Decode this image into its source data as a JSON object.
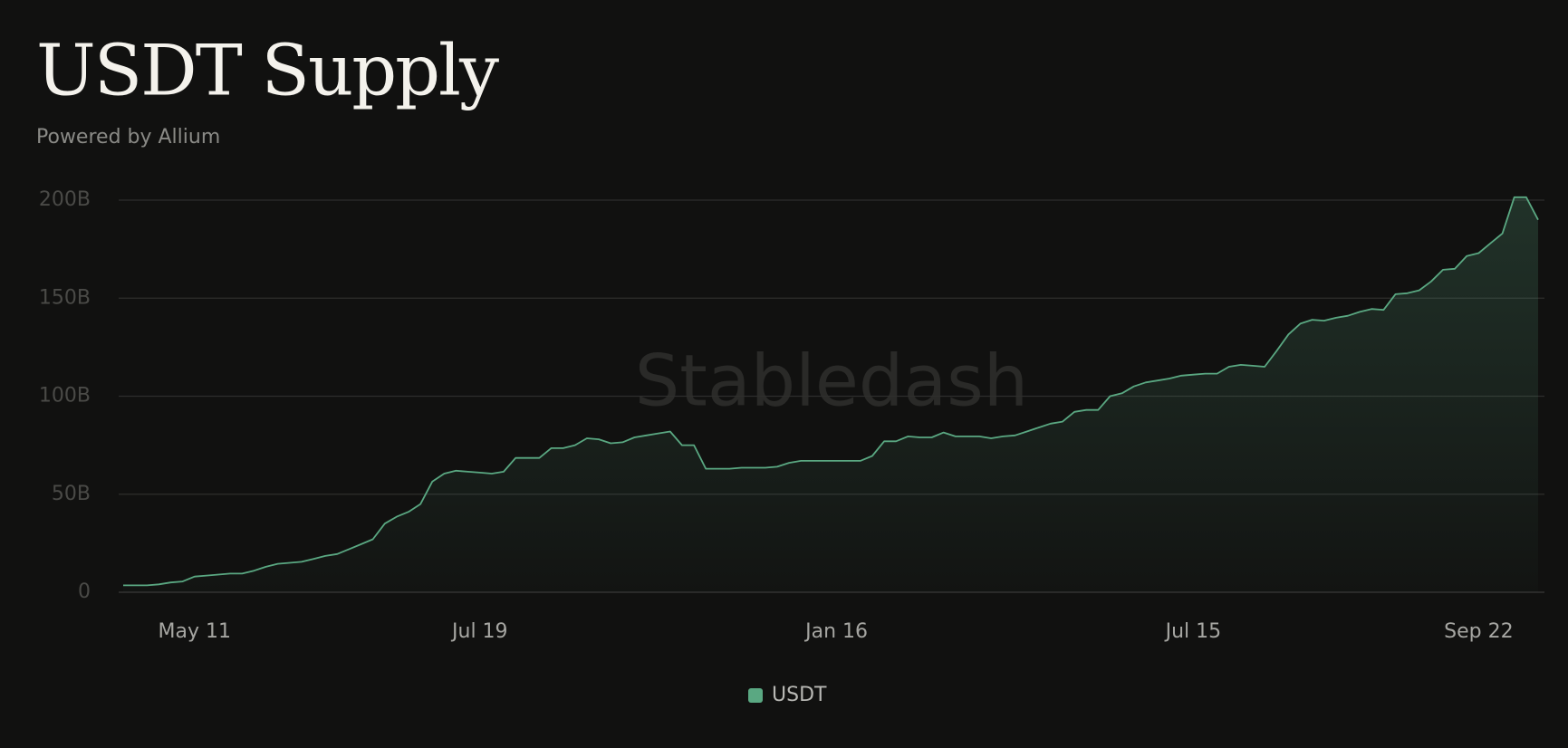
{
  "chart_data": {
    "type": "area",
    "title": "USDT Supply",
    "subtitle": "Powered by Allium",
    "watermark": "Stabledash",
    "categories": [
      null,
      null,
      null,
      null,
      null,
      null,
      "May 11",
      null,
      null,
      null,
      null,
      null,
      null,
      null,
      null,
      null,
      null,
      null,
      null,
      null,
      null,
      null,
      null,
      null,
      null,
      null,
      null,
      null,
      null,
      null,
      "Jul 19",
      null,
      null,
      null,
      null,
      null,
      null,
      null,
      null,
      null,
      null,
      null,
      null,
      null,
      null,
      null,
      null,
      null,
      null,
      null,
      null,
      null,
      null,
      null,
      null,
      null,
      null,
      null,
      null,
      null,
      "Jan 16",
      null,
      null,
      null,
      null,
      null,
      null,
      null,
      null,
      null,
      null,
      null,
      null,
      null,
      null,
      null,
      null,
      null,
      null,
      null,
      null,
      null,
      null,
      null,
      null,
      null,
      null,
      null,
      null,
      null,
      "Jul 15",
      null,
      null,
      null,
      null,
      null,
      null,
      null,
      null,
      null,
      null,
      null,
      null,
      null,
      null,
      null,
      null,
      null,
      null,
      null,
      null,
      null,
      null,
      null,
      "Sep 22",
      null,
      null,
      null,
      null,
      null
    ],
    "series": [
      {
        "name": "USDT",
        "color": "#5aa882",
        "values": [
          3.5,
          3.5,
          3.5,
          4,
          5,
          5.5,
          8,
          8.5,
          9,
          9.5,
          9.5,
          11,
          13,
          14.5,
          15,
          15.5,
          17,
          18.5,
          19.5,
          22,
          24.5,
          27,
          35,
          38.5,
          41,
          45,
          56.5,
          60.5,
          62,
          61.5,
          61,
          60.5,
          61.5,
          68.5,
          68.5,
          68.5,
          73.5,
          73.5,
          75,
          78.5,
          78,
          76,
          76.5,
          79,
          80,
          81,
          82,
          75,
          75,
          63,
          63,
          63,
          63.5,
          63.5,
          63.5,
          64,
          66,
          67,
          67,
          67,
          67,
          67,
          67,
          69.5,
          77,
          77,
          79.5,
          79,
          79,
          81.5,
          79.5,
          79.5,
          79.5,
          78.5,
          79.5,
          80,
          82,
          84,
          86,
          87,
          92,
          93,
          93,
          100,
          101.5,
          105,
          107,
          108,
          109,
          110.5,
          111,
          111.5,
          111.5,
          115,
          116,
          115.5,
          115,
          123,
          131.5,
          137,
          139,
          138.5,
          140,
          141,
          143,
          144.5,
          144,
          152,
          152.5,
          154,
          158.5,
          164.5,
          165,
          171.5,
          173,
          178,
          183,
          201.5,
          201.5,
          190
        ]
      }
    ],
    "ylim": [
      0,
      200
    ],
    "yticks": [
      {
        "value": 0,
        "label": "0"
      },
      {
        "value": 50,
        "label": "50B"
      },
      {
        "value": 100,
        "label": "100B"
      },
      {
        "value": 150,
        "label": "150B"
      },
      {
        "value": 200,
        "label": "200B"
      }
    ],
    "grid": true
  }
}
